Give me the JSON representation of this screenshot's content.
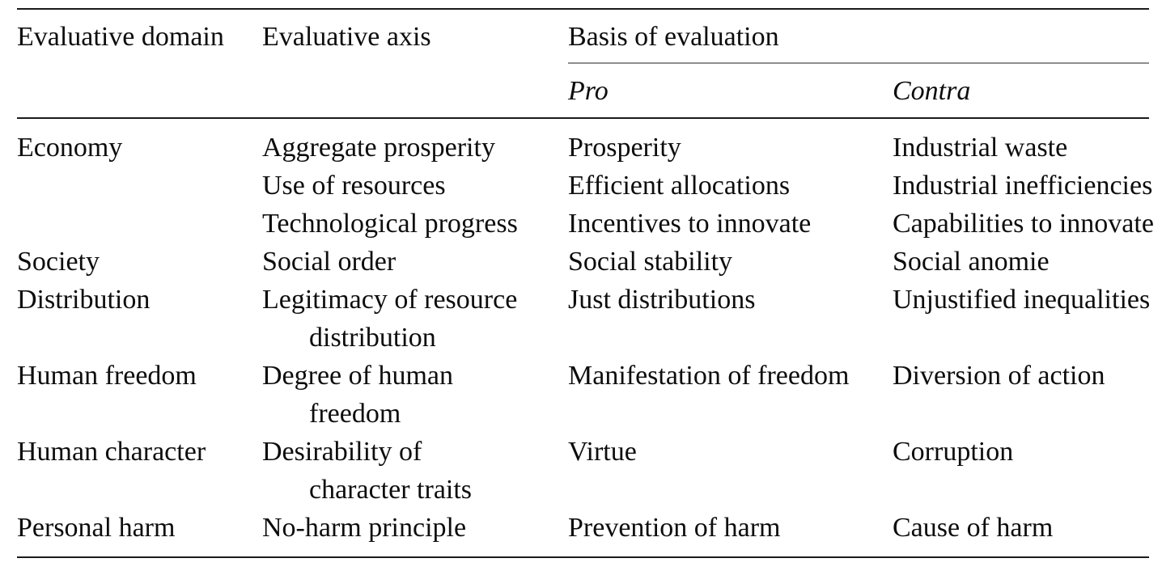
{
  "colors": {
    "background": "#ffffff",
    "text": "#0d0d0d",
    "rule_dark": "#1b1b1b",
    "rule_light": "#8e8e8e"
  },
  "table": {
    "header": {
      "col_domain": "Evaluative domain",
      "col_axis": "Evaluative axis",
      "col_basis": "Basis of evaluation",
      "sub_pro": "Pro",
      "sub_contra": "Contra"
    },
    "rows": [
      {
        "domain": "Economy",
        "axis": [
          "Aggregate prosperity"
        ],
        "pro": "Prosperity",
        "contra": "Industrial waste"
      },
      {
        "domain": "",
        "axis": [
          "Use of resources"
        ],
        "pro": "Efficient allocations",
        "contra": "Industrial inefficiencies"
      },
      {
        "domain": "",
        "axis": [
          "Technological progress"
        ],
        "pro": "Incentives to innovate",
        "contra": "Capabilities to innovate"
      },
      {
        "domain": "Society",
        "axis": [
          "Social order"
        ],
        "pro": "Social stability",
        "contra": "Social anomie"
      },
      {
        "domain": "Distribution",
        "axis": [
          "Legitimacy of resource",
          "distribution"
        ],
        "pro": "Just distributions",
        "contra": "Unjustified inequalities"
      },
      {
        "domain": "Human freedom",
        "axis": [
          "Degree of human",
          "freedom"
        ],
        "pro": "Manifestation of freedom",
        "contra": "Diversion of action"
      },
      {
        "domain": "Human character",
        "axis": [
          "Desirability of",
          "character traits"
        ],
        "pro": "Virtue",
        "contra": "Corruption"
      },
      {
        "domain": "Personal harm",
        "axis": [
          "No-harm principle"
        ],
        "pro": "Prevention of harm",
        "contra": "Cause of harm"
      }
    ]
  }
}
